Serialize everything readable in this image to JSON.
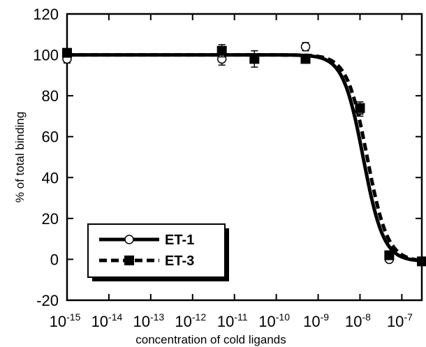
{
  "chart_data": {
    "type": "line",
    "xlabel": "concentration of cold ligands",
    "ylabel": "% of total binding",
    "x_scale": "log",
    "xlim": [
      1e-15,
      3e-07
    ],
    "ylim": [
      -20,
      120
    ],
    "x_tick_labels": [
      {
        "base": "10",
        "exp": "-15",
        "value": 1e-15
      },
      {
        "base": "10",
        "exp": "-14",
        "value": 1e-14
      },
      {
        "base": "10",
        "exp": "-13",
        "value": 1e-13
      },
      {
        "base": "10",
        "exp": "-12",
        "value": 1e-12
      },
      {
        "base": "10",
        "exp": "-11",
        "value": 1e-11
      },
      {
        "base": "10",
        "exp": "-10",
        "value": 1e-10
      },
      {
        "base": "10",
        "exp": "-9",
        "value": 1e-09
      },
      {
        "base": "10",
        "exp": "-8",
        "value": 1e-08
      },
      {
        "base": "10",
        "exp": "-7",
        "value": 1e-07
      }
    ],
    "y_ticks": [
      {
        "label": "-20",
        "value": -20
      },
      {
        "label": "0",
        "value": 0
      },
      {
        "label": "20",
        "value": 20
      },
      {
        "label": "40",
        "value": 40
      },
      {
        "label": "60",
        "value": 60
      },
      {
        "label": "80",
        "value": 80
      },
      {
        "label": "100",
        "value": 100
      },
      {
        "label": "120",
        "value": 120
      }
    ],
    "legend_position": "bottom-left",
    "grid": false,
    "series": [
      {
        "name": "ET-1",
        "line_style": "solid",
        "marker": "open-circle",
        "color": "#000000",
        "points": [
          {
            "x": 1e-15,
            "y": 98,
            "err": 2
          },
          {
            "x": 5e-12,
            "y": 98,
            "err": 3
          },
          {
            "x": 5e-10,
            "y": 104,
            "err": 2
          },
          {
            "x": 1e-08,
            "y": 73,
            "err": 3
          },
          {
            "x": 5e-08,
            "y": 0,
            "err": 1
          },
          {
            "x": 3e-07,
            "y": -1,
            "err": 1
          }
        ],
        "fit": {
          "top": 100,
          "bottom": -1,
          "ic50": 1.2e-08,
          "hill": 1.8
        }
      },
      {
        "name": "ET-3",
        "line_style": "dashed",
        "marker": "filled-square",
        "color": "#000000",
        "points": [
          {
            "x": 1e-15,
            "y": 101,
            "err": 2
          },
          {
            "x": 5e-12,
            "y": 102,
            "err": 3
          },
          {
            "x": 3e-11,
            "y": 98,
            "err": 4
          },
          {
            "x": 5e-10,
            "y": 98,
            "err": 2
          },
          {
            "x": 1e-08,
            "y": 74,
            "err": 3
          },
          {
            "x": 5e-08,
            "y": 2,
            "err": 1
          },
          {
            "x": 3e-07,
            "y": -1,
            "err": 1
          }
        ],
        "fit": {
          "top": 100,
          "bottom": -1,
          "ic50": 1.5e-08,
          "hill": 1.8
        }
      }
    ]
  }
}
